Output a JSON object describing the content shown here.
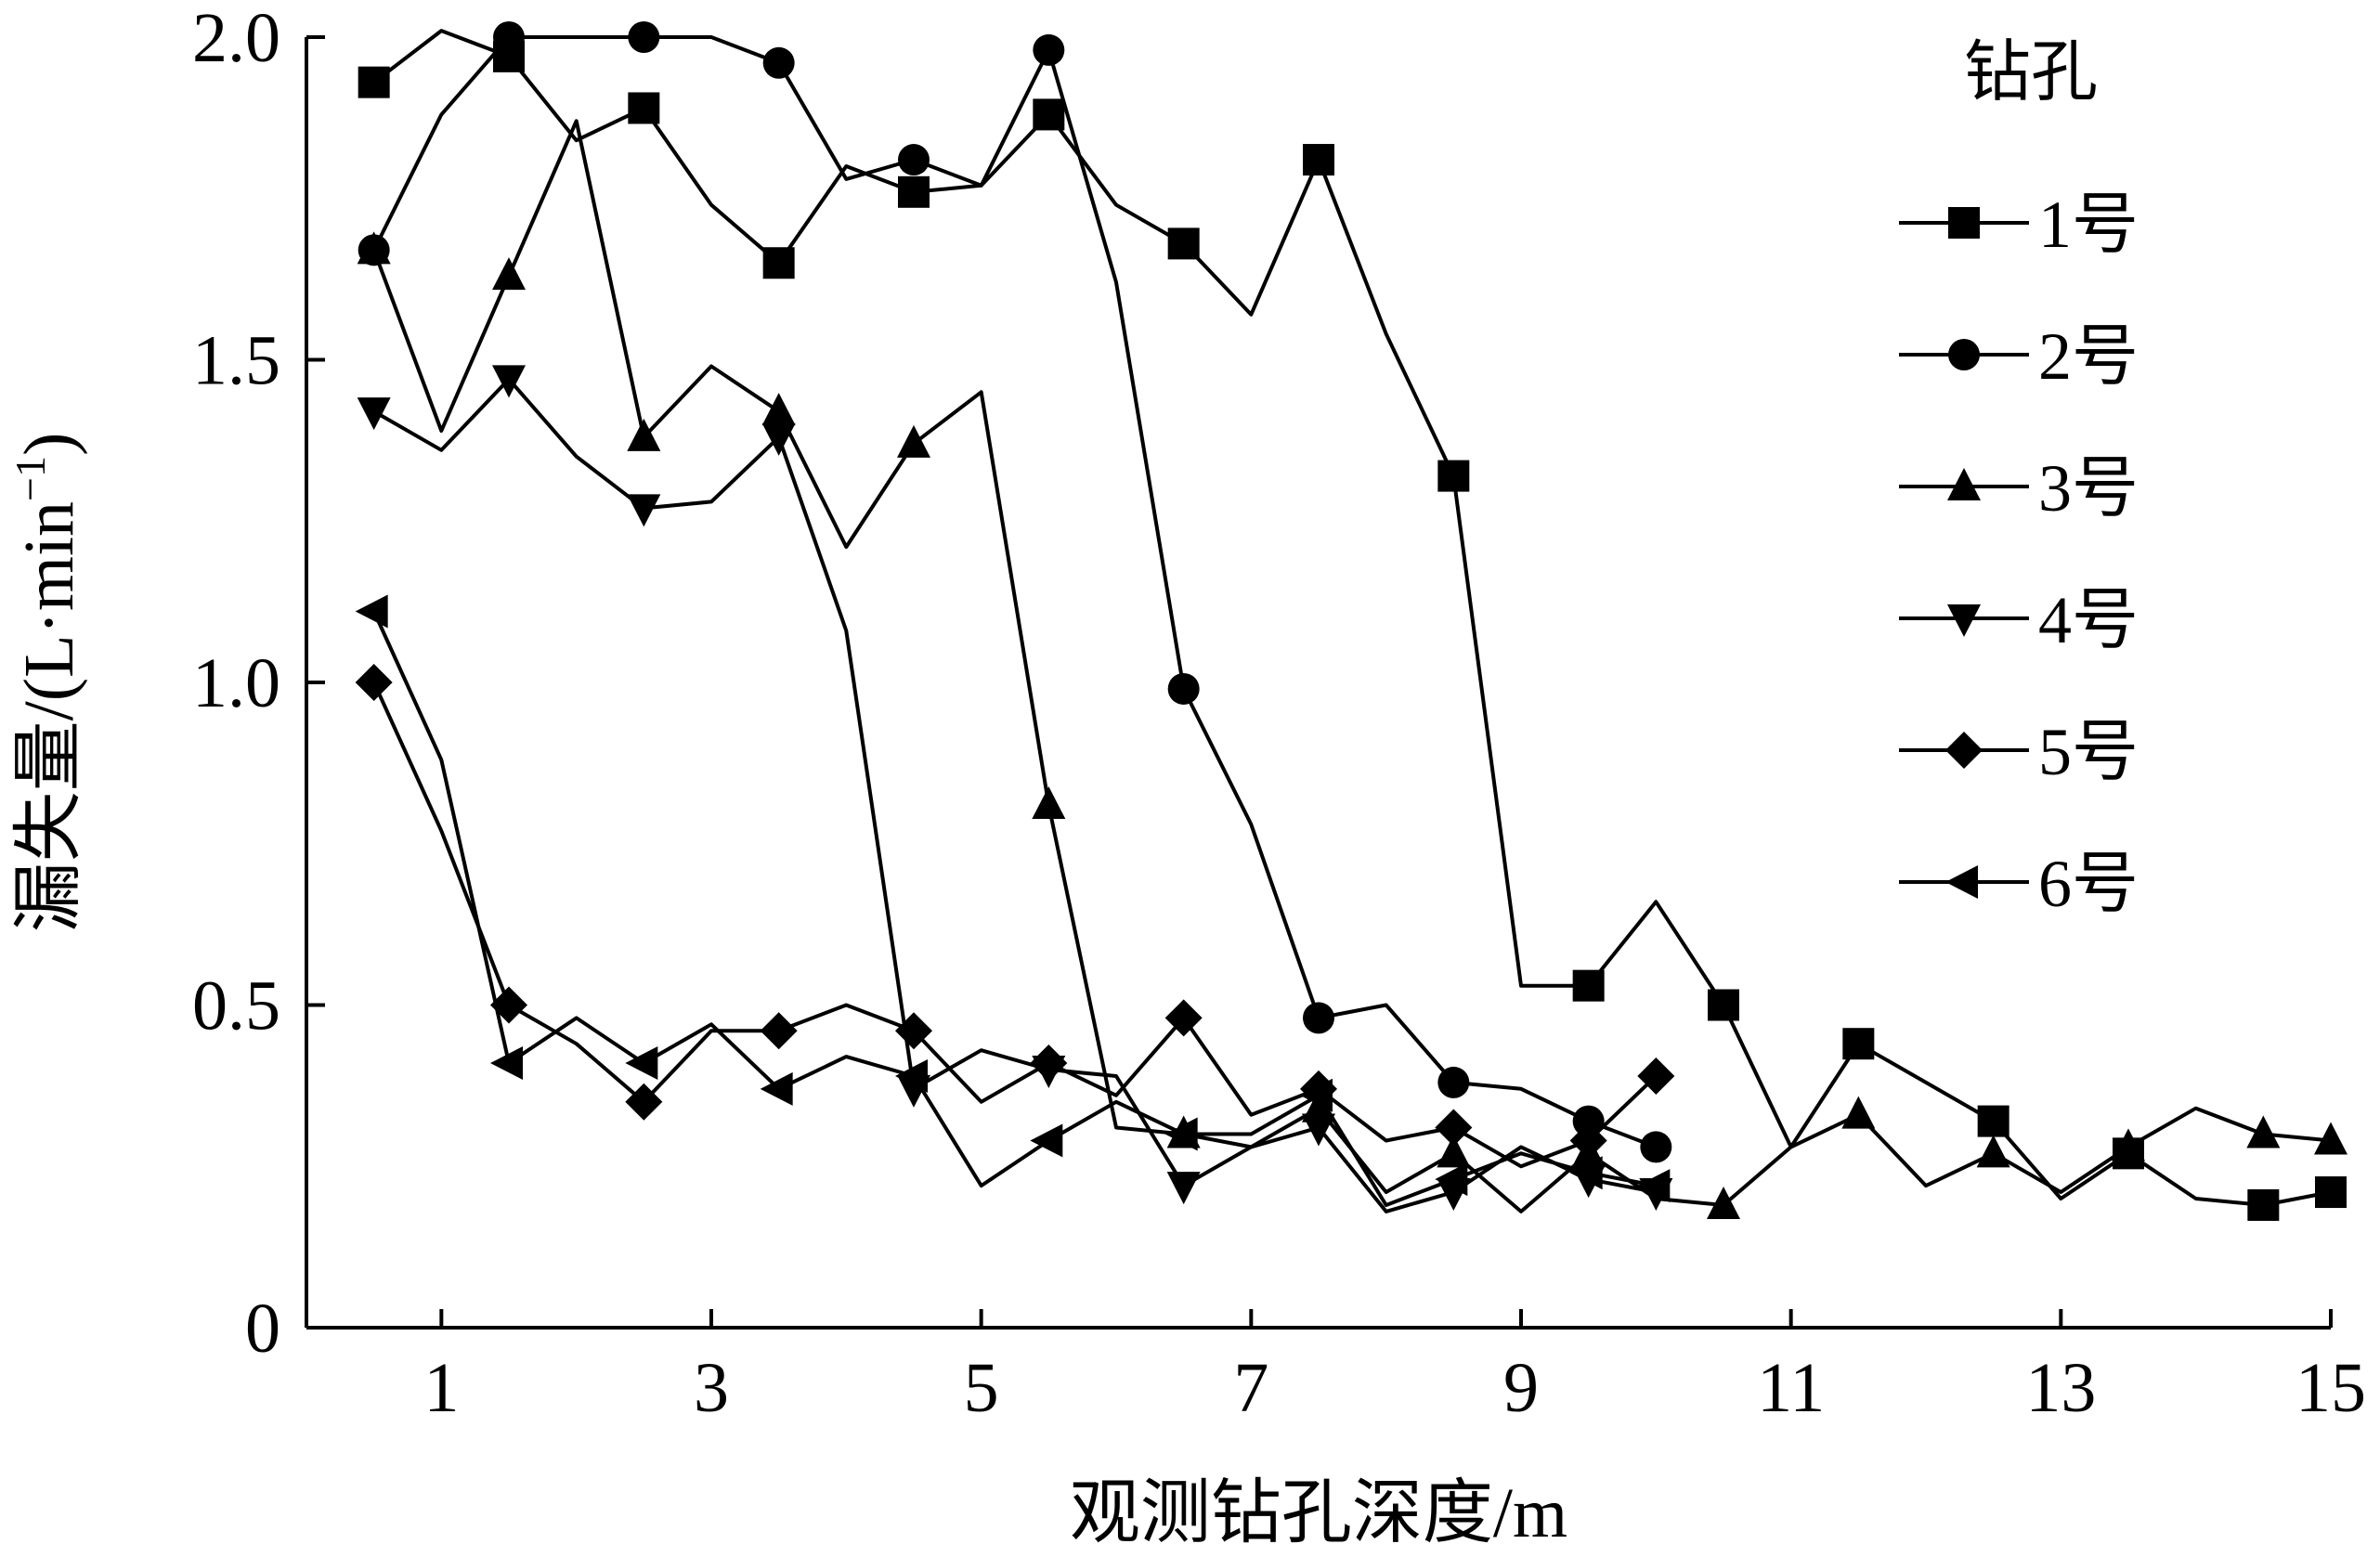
{
  "chart_data": {
    "type": "line",
    "xlabel": "观测钻孔深度/m",
    "ylabel": "漏失量/(L·min",
    "ylabel_sup": "−1",
    "ylabel_close": ")",
    "xlim": [
      0,
      15
    ],
    "ylim": [
      0,
      2.0
    ],
    "x_ticks": [
      1,
      3,
      5,
      7,
      9,
      11,
      13,
      15
    ],
    "y_ticks": [
      0,
      0.5,
      1.0,
      1.5,
      2.0
    ],
    "y_tick_labels": [
      "0",
      "0.5",
      "1.0",
      "1.5",
      "2.0"
    ],
    "grid": false,
    "legend": {
      "title": "钻孔",
      "position": "top-right"
    },
    "series": [
      {
        "name": "1号",
        "marker": "square",
        "points": [
          [
            0.5,
            1.93
          ],
          [
            1,
            2.01
          ],
          [
            1.5,
            1.97
          ],
          [
            2,
            1.84
          ],
          [
            2.5,
            1.89
          ],
          [
            3,
            1.74
          ],
          [
            3.5,
            1.65
          ],
          [
            4,
            1.8
          ],
          [
            4.5,
            1.76
          ],
          [
            5,
            1.77
          ],
          [
            5.5,
            1.88
          ],
          [
            6,
            1.74
          ],
          [
            6.5,
            1.68
          ],
          [
            7,
            1.57
          ],
          [
            7.5,
            1.81
          ],
          [
            8,
            1.54
          ],
          [
            8.5,
            1.32
          ],
          [
            9,
            0.53
          ],
          [
            9.5,
            0.53
          ],
          [
            10,
            0.66
          ],
          [
            10.5,
            0.5
          ],
          [
            11,
            0.28
          ],
          [
            11.5,
            0.44
          ],
          [
            12,
            0.38
          ],
          [
            12.5,
            0.32
          ],
          [
            13,
            0.2
          ],
          [
            13.5,
            0.27
          ],
          [
            14,
            0.2
          ],
          [
            14.5,
            0.19
          ],
          [
            15,
            0.21
          ]
        ]
      },
      {
        "name": "2号",
        "marker": "circle",
        "points": [
          [
            0.5,
            1.67
          ],
          [
            1,
            1.88
          ],
          [
            1.5,
            2.0
          ],
          [
            2,
            2.0
          ],
          [
            2.5,
            2.0
          ],
          [
            3,
            2.0
          ],
          [
            3.5,
            1.96
          ],
          [
            4,
            1.78
          ],
          [
            4.5,
            1.81
          ],
          [
            5,
            1.77
          ],
          [
            5.5,
            1.98
          ],
          [
            6,
            1.62
          ],
          [
            6.5,
            0.99
          ],
          [
            7,
            0.78
          ],
          [
            7.5,
            0.48
          ],
          [
            8,
            0.5
          ],
          [
            8.5,
            0.38
          ],
          [
            9,
            0.37
          ],
          [
            9.5,
            0.32
          ],
          [
            10,
            0.28
          ]
        ]
      },
      {
        "name": "3号",
        "marker": "triangle-up",
        "points": [
          [
            0.5,
            1.67
          ],
          [
            1,
            1.39
          ],
          [
            1.5,
            1.63
          ],
          [
            2,
            1.87
          ],
          [
            2.5,
            1.38
          ],
          [
            3,
            1.49
          ],
          [
            3.5,
            1.42
          ],
          [
            4,
            1.21
          ],
          [
            4.5,
            1.37
          ],
          [
            5,
            1.45
          ],
          [
            5.5,
            0.81
          ],
          [
            6,
            0.31
          ],
          [
            6.5,
            0.3
          ],
          [
            7,
            0.28
          ],
          [
            7.5,
            0.34
          ],
          [
            8,
            0.21
          ],
          [
            8.5,
            0.27
          ],
          [
            9,
            0.18
          ],
          [
            9.5,
            0.27
          ],
          [
            10,
            0.2
          ],
          [
            10.5,
            0.19
          ],
          [
            11,
            0.28
          ],
          [
            11.5,
            0.33
          ],
          [
            12,
            0.22
          ],
          [
            12.5,
            0.27
          ],
          [
            13,
            0.21
          ],
          [
            13.5,
            0.28
          ],
          [
            14,
            0.34
          ],
          [
            14.5,
            0.3
          ],
          [
            15,
            0.29
          ]
        ]
      },
      {
        "name": "4号",
        "marker": "triangle-down",
        "points": [
          [
            0.5,
            1.42
          ],
          [
            1,
            1.36
          ],
          [
            1.5,
            1.47
          ],
          [
            2,
            1.35
          ],
          [
            2.5,
            1.27
          ],
          [
            3,
            1.28
          ],
          [
            3.5,
            1.38
          ],
          [
            4,
            1.08
          ],
          [
            4.5,
            0.37
          ],
          [
            5,
            0.43
          ],
          [
            5.5,
            0.4
          ],
          [
            6,
            0.39
          ],
          [
            6.5,
            0.22
          ],
          [
            7,
            0.28
          ],
          [
            7.5,
            0.31
          ],
          [
            8,
            0.18
          ],
          [
            8.5,
            0.21
          ],
          [
            9,
            0.28
          ],
          [
            9.5,
            0.23
          ],
          [
            10,
            0.21
          ]
        ]
      },
      {
        "name": "5号",
        "marker": "diamond",
        "points": [
          [
            0.5,
            1.0
          ],
          [
            1,
            0.77
          ],
          [
            1.5,
            0.5
          ],
          [
            2,
            0.44
          ],
          [
            2.5,
            0.35
          ],
          [
            3,
            0.46
          ],
          [
            3.5,
            0.46
          ],
          [
            4,
            0.5
          ],
          [
            4.5,
            0.46
          ],
          [
            5,
            0.35
          ],
          [
            5.5,
            0.41
          ],
          [
            6,
            0.36
          ],
          [
            6.5,
            0.48
          ],
          [
            7,
            0.33
          ],
          [
            7.5,
            0.37
          ],
          [
            8,
            0.29
          ],
          [
            8.5,
            0.31
          ],
          [
            9,
            0.25
          ],
          [
            9.5,
            0.29
          ],
          [
            10,
            0.39
          ]
        ]
      },
      {
        "name": "6号",
        "marker": "triangle-left",
        "points": [
          [
            0.5,
            1.11
          ],
          [
            1,
            0.88
          ],
          [
            1.5,
            0.41
          ],
          [
            2,
            0.48
          ],
          [
            2.5,
            0.41
          ],
          [
            3,
            0.47
          ],
          [
            3.5,
            0.37
          ],
          [
            4,
            0.42
          ],
          [
            4.5,
            0.39
          ],
          [
            5,
            0.22
          ],
          [
            5.5,
            0.29
          ],
          [
            6,
            0.35
          ],
          [
            6.5,
            0.3
          ],
          [
            7,
            0.3
          ],
          [
            7.5,
            0.36
          ],
          [
            8,
            0.19
          ],
          [
            8.5,
            0.23
          ],
          [
            9,
            0.27
          ],
          [
            9.5,
            0.24
          ],
          [
            10,
            0.22
          ]
        ]
      }
    ]
  }
}
